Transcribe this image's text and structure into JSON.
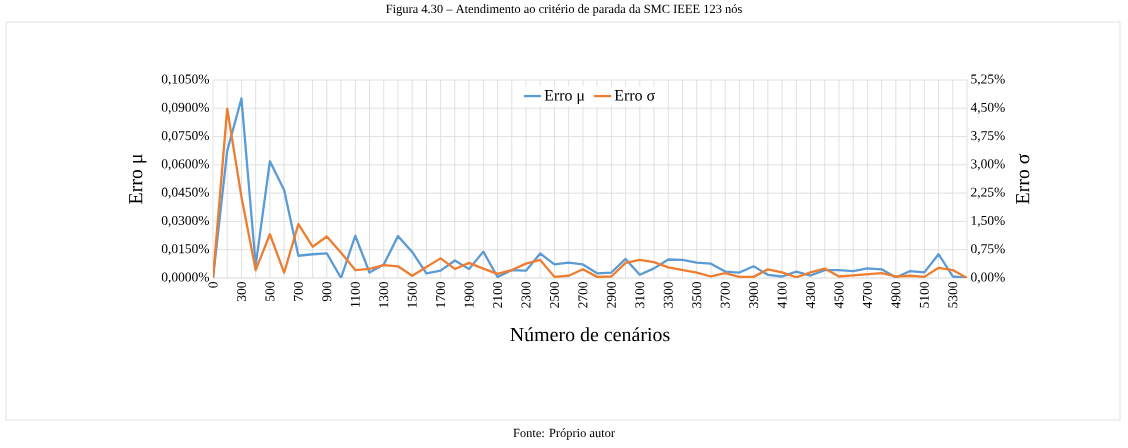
{
  "chart_data": {
    "type": "line",
    "title": "Figura 4.30 – Atendimento ao critério de parada da SMC IEEE 123 nós",
    "xlabel": "Número de cenários",
    "ylabel": "Erro μ",
    "y2label": "Erro σ",
    "annotations": [
      "Fonte: Próprio autor"
    ],
    "categories": [
      "0",
      null,
      "300",
      null,
      "500",
      null,
      "700",
      null,
      "900",
      null,
      "1100",
      null,
      "1300",
      null,
      "1500",
      null,
      "1700",
      null,
      "1900",
      null,
      "2100",
      null,
      "2300",
      null,
      "2500",
      null,
      "2700",
      null,
      "2900",
      null,
      "3100",
      null,
      "3300",
      null,
      "3500",
      null,
      "3700",
      null,
      "3900",
      null,
      "4100",
      null,
      "4300",
      null,
      "4500",
      null,
      "4700",
      null,
      "4900",
      null,
      "5100",
      null,
      "5300",
      null
    ],
    "series": [
      {
        "name": "Erro μ",
        "color": "#5b9bd5",
        "values": [
          0,
          0.0674,
          0.0952,
          0.0067,
          0.0619,
          0.0467,
          0.0118,
          0.0126,
          0.0131,
          0,
          0.0224,
          0.0029,
          0.0071,
          0.0222,
          0.0138,
          0.0025,
          0.0039,
          0.0093,
          0.0047,
          0.014,
          0.0005,
          0.0042,
          0.0039,
          0.013,
          0.0072,
          0.0081,
          0.0072,
          0.0025,
          0.0029,
          0.0101,
          0.0017,
          0.0051,
          0.0098,
          0.0096,
          0.0081,
          0.0076,
          0.0034,
          0.0029,
          0.0062,
          0.0017,
          0.0008,
          0.0034,
          0.0013,
          0.0042,
          0.0042,
          0.0037,
          0.0051,
          0.0046,
          0.0003,
          0.0037,
          0.003,
          0.0126,
          0.0008,
          0
        ]
      },
      {
        "name": "Erro σ",
        "color": "#ed7d31",
        "axis": "y2",
        "values": [
          0,
          4.49,
          2.15,
          0.21,
          1.16,
          0.14,
          1.43,
          0.83,
          1.1,
          0.67,
          0.21,
          0.24,
          0.34,
          0.31,
          0.06,
          0.29,
          0.52,
          0.24,
          0.4,
          0.25,
          0.11,
          0.21,
          0.38,
          0.48,
          0.03,
          0.06,
          0.23,
          0.03,
          0.04,
          0.4,
          0.48,
          0.42,
          0.28,
          0.21,
          0.14,
          0.04,
          0.13,
          0.03,
          0.03,
          0.23,
          0.15,
          0.02,
          0.15,
          0.25,
          0.04,
          0.07,
          0.1,
          0.13,
          0.04,
          0.06,
          0.03,
          0.27,
          0.21,
          0
        ]
      }
    ],
    "ylim": [
      0,
      0.105
    ],
    "yticks": [
      {
        "value": 0,
        "label": "0,0000%"
      },
      {
        "value": 0.015,
        "label": "0,0150%"
      },
      {
        "value": 0.03,
        "label": "0,0300%"
      },
      {
        "value": 0.045,
        "label": "0,0450%"
      },
      {
        "value": 0.06,
        "label": "0,0600%"
      },
      {
        "value": 0.075,
        "label": "0,0750%"
      },
      {
        "value": 0.09,
        "label": "0,0900%"
      },
      {
        "value": 0.105,
        "label": "0,1050%"
      }
    ],
    "y2lim": [
      0,
      5.25
    ],
    "y2ticks": [
      {
        "value": 0,
        "label": "0,00%"
      },
      {
        "value": 0.75,
        "label": "0,75%"
      },
      {
        "value": 1.5,
        "label": "1,50%"
      },
      {
        "value": 2.25,
        "label": "2,25%"
      },
      {
        "value": 3,
        "label": "3,00%"
      },
      {
        "value": 3.75,
        "label": "3,75%"
      },
      {
        "value": 4.5,
        "label": "4,50%"
      },
      {
        "value": 5.25,
        "label": "5,25%"
      }
    ],
    "grid": true,
    "legend": "top",
    "marker": "none",
    "line_style": "solid"
  }
}
